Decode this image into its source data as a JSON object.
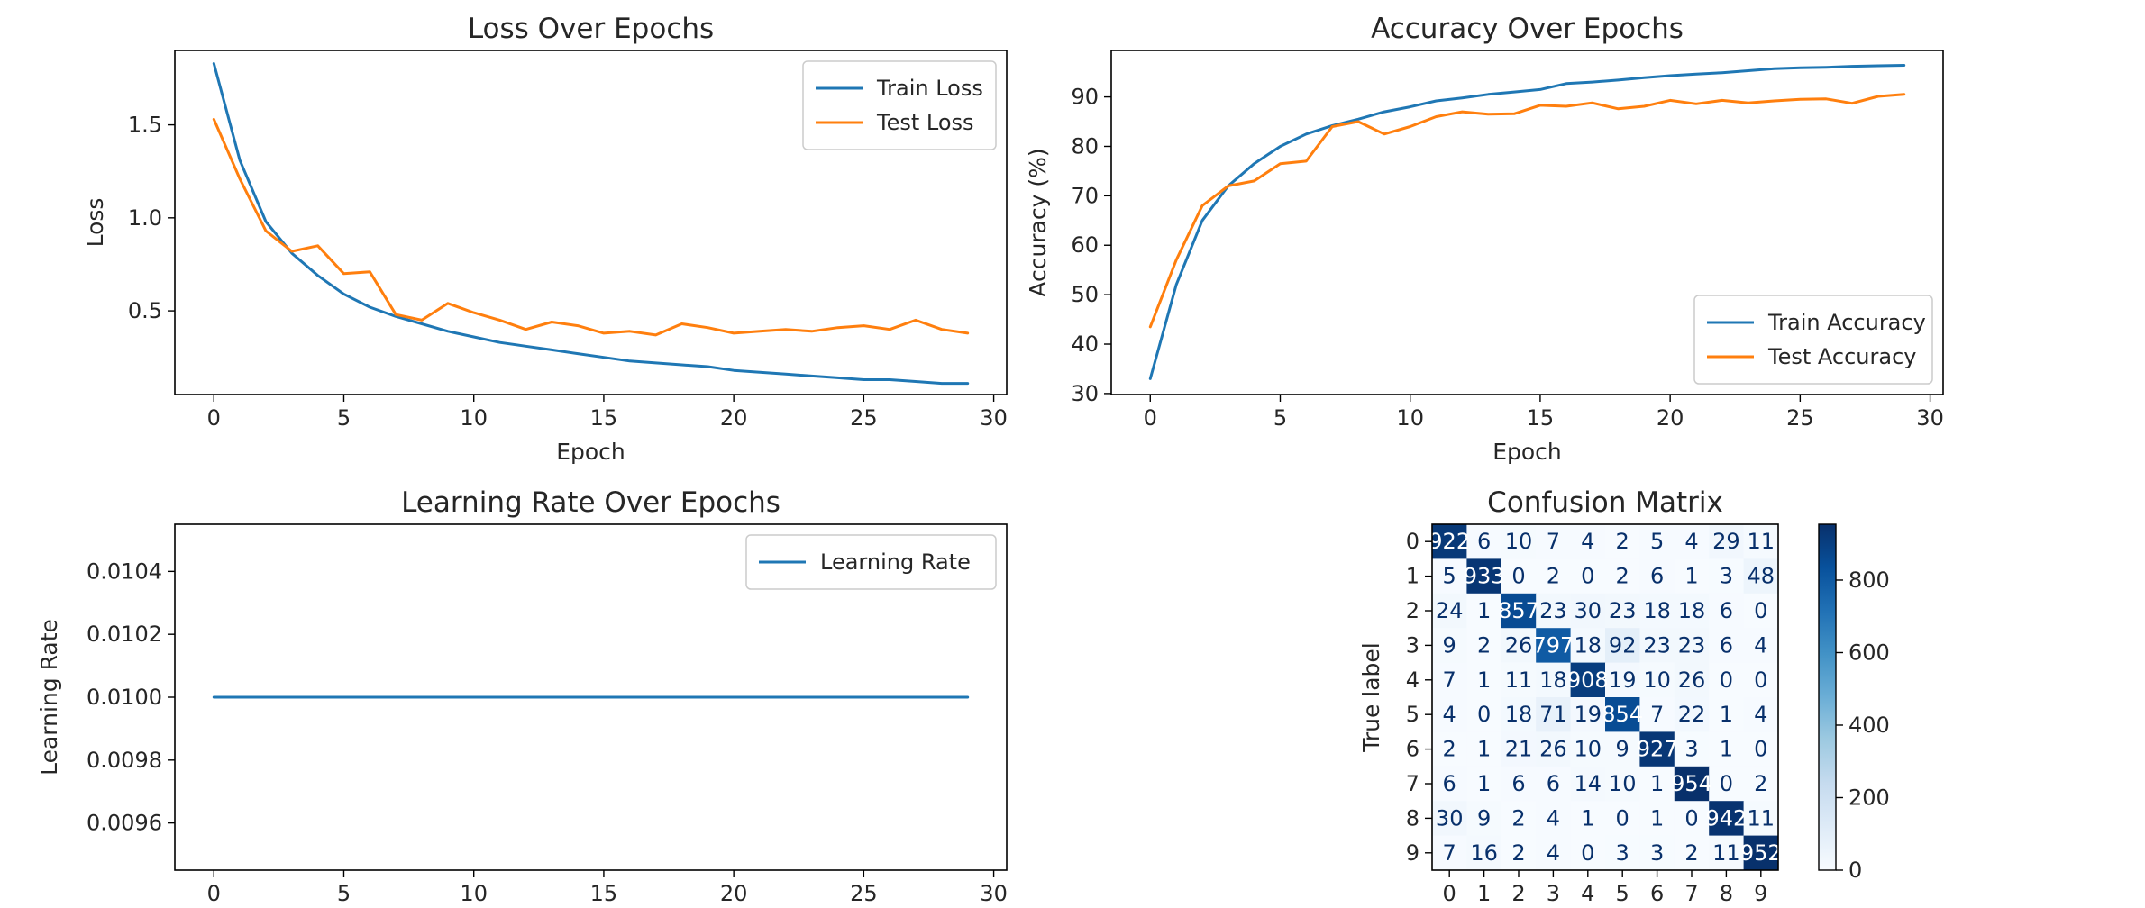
{
  "chart_data": [
    {
      "id": "loss",
      "type": "line",
      "title": "Loss Over Epochs",
      "xlabel": "Epoch",
      "ylabel": "Loss",
      "xlim": [
        -1.5,
        30.5
      ],
      "ylim": [
        0.05,
        1.9
      ],
      "xticks": [
        0,
        5,
        10,
        15,
        20,
        25,
        30
      ],
      "yticks": [
        0.5,
        1.0,
        1.5
      ],
      "ytick_labels": [
        "0.5",
        "1.0",
        "1.5"
      ],
      "legend": "upper right",
      "x": [
        0,
        1,
        2,
        3,
        4,
        5,
        6,
        7,
        8,
        9,
        10,
        11,
        12,
        13,
        14,
        15,
        16,
        17,
        18,
        19,
        20,
        21,
        22,
        23,
        24,
        25,
        26,
        27,
        28,
        29
      ],
      "series": [
        {
          "name": "Train Loss",
          "color": "#1f77b4",
          "values": [
            1.83,
            1.31,
            0.98,
            0.81,
            0.69,
            0.59,
            0.52,
            0.47,
            0.43,
            0.39,
            0.36,
            0.33,
            0.31,
            0.29,
            0.27,
            0.25,
            0.23,
            0.22,
            0.21,
            0.2,
            0.18,
            0.17,
            0.16,
            0.15,
            0.14,
            0.13,
            0.13,
            0.12,
            0.11,
            0.11
          ]
        },
        {
          "name": "Test Loss",
          "color": "#ff7f0e",
          "values": [
            1.53,
            1.21,
            0.93,
            0.82,
            0.85,
            0.7,
            0.71,
            0.48,
            0.45,
            0.54,
            0.49,
            0.45,
            0.4,
            0.44,
            0.42,
            0.38,
            0.39,
            0.37,
            0.43,
            0.41,
            0.38,
            0.39,
            0.4,
            0.39,
            0.41,
            0.42,
            0.4,
            0.45,
            0.4,
            0.38
          ]
        }
      ]
    },
    {
      "id": "accuracy",
      "type": "line",
      "title": "Accuracy Over Epochs",
      "xlabel": "Epoch",
      "ylabel": "Accuracy (%)",
      "xlim": [
        -1.5,
        30.5
      ],
      "ylim": [
        29.8,
        99.4
      ],
      "xticks": [
        0,
        5,
        10,
        15,
        20,
        25,
        30
      ],
      "yticks": [
        30,
        40,
        50,
        60,
        70,
        80,
        90
      ],
      "ytick_labels": [
        "30",
        "40",
        "50",
        "60",
        "70",
        "80",
        "90"
      ],
      "legend": "lower right",
      "x": [
        0,
        1,
        2,
        3,
        4,
        5,
        6,
        7,
        8,
        9,
        10,
        11,
        12,
        13,
        14,
        15,
        16,
        17,
        18,
        19,
        20,
        21,
        22,
        23,
        24,
        25,
        26,
        27,
        28,
        29
      ],
      "series": [
        {
          "name": "Train Accuracy",
          "color": "#1f77b4",
          "values": [
            33,
            52,
            65,
            72,
            76.5,
            80,
            82.5,
            84.2,
            85.5,
            87,
            88,
            89.2,
            89.8,
            90.5,
            91,
            91.5,
            92.7,
            93,
            93.4,
            93.9,
            94.3,
            94.6,
            94.9,
            95.3,
            95.7,
            95.9,
            96,
            96.2,
            96.3,
            96.4
          ]
        },
        {
          "name": "Test Accuracy",
          "color": "#ff7f0e",
          "values": [
            43.5,
            57,
            68,
            72,
            73,
            76.5,
            77,
            84,
            85,
            82.5,
            84,
            86,
            87,
            86.5,
            86.6,
            88.3,
            88.1,
            88.8,
            87.6,
            88.1,
            89.3,
            88.6,
            89.3,
            88.8,
            89.2,
            89.5,
            89.6,
            88.7,
            90.1,
            90.5
          ]
        }
      ]
    },
    {
      "id": "lr",
      "type": "line",
      "title": "Learning Rate Over Epochs",
      "xlabel": "",
      "ylabel": "Learning Rate",
      "xlim": [
        -1.5,
        30.5
      ],
      "ylim": [
        0.00945,
        0.01055
      ],
      "xticks": [
        0,
        5,
        10,
        15,
        20,
        25,
        30
      ],
      "yticks": [
        0.0096,
        0.0098,
        0.01,
        0.0102,
        0.0104
      ],
      "ytick_labels": [
        "0.0096",
        "0.0098",
        "0.0100",
        "0.0102",
        "0.0104"
      ],
      "legend": "upper right",
      "x": [
        0,
        1,
        2,
        3,
        4,
        5,
        6,
        7,
        8,
        9,
        10,
        11,
        12,
        13,
        14,
        15,
        16,
        17,
        18,
        19,
        20,
        21,
        22,
        23,
        24,
        25,
        26,
        27,
        28,
        29
      ],
      "series": [
        {
          "name": "Learning Rate",
          "color": "#1f77b4",
          "values": [
            0.01,
            0.01,
            0.01,
            0.01,
            0.01,
            0.01,
            0.01,
            0.01,
            0.01,
            0.01,
            0.01,
            0.01,
            0.01,
            0.01,
            0.01,
            0.01,
            0.01,
            0.01,
            0.01,
            0.01,
            0.01,
            0.01,
            0.01,
            0.01,
            0.01,
            0.01,
            0.01,
            0.01,
            0.01,
            0.01
          ]
        }
      ]
    },
    {
      "id": "confusion",
      "type": "heatmap",
      "title": "Confusion Matrix",
      "xlabel": "",
      "ylabel": "True label",
      "labels": [
        "0",
        "1",
        "2",
        "3",
        "4",
        "5",
        "6",
        "7",
        "8",
        "9"
      ],
      "colormap": "Blues",
      "vmin": 0,
      "vmax": 954,
      "colorbar_ticks": [
        0,
        200,
        400,
        600,
        800
      ],
      "matrix": [
        [
          922,
          6,
          10,
          7,
          4,
          2,
          5,
          4,
          29,
          11
        ],
        [
          5,
          933,
          0,
          2,
          0,
          2,
          6,
          1,
          3,
          48
        ],
        [
          24,
          1,
          857,
          23,
          30,
          23,
          18,
          18,
          6,
          0
        ],
        [
          9,
          2,
          26,
          797,
          18,
          92,
          23,
          23,
          6,
          4
        ],
        [
          7,
          1,
          11,
          18,
          908,
          19,
          10,
          26,
          0,
          0
        ],
        [
          4,
          0,
          18,
          71,
          19,
          854,
          7,
          22,
          1,
          4
        ],
        [
          2,
          1,
          21,
          26,
          10,
          9,
          927,
          3,
          1,
          0
        ],
        [
          6,
          1,
          6,
          6,
          14,
          10,
          1,
          954,
          0,
          2
        ],
        [
          30,
          9,
          2,
          4,
          1,
          0,
          1,
          0,
          942,
          11
        ],
        [
          7,
          16,
          2,
          4,
          0,
          3,
          3,
          2,
          11,
          952
        ]
      ]
    }
  ]
}
